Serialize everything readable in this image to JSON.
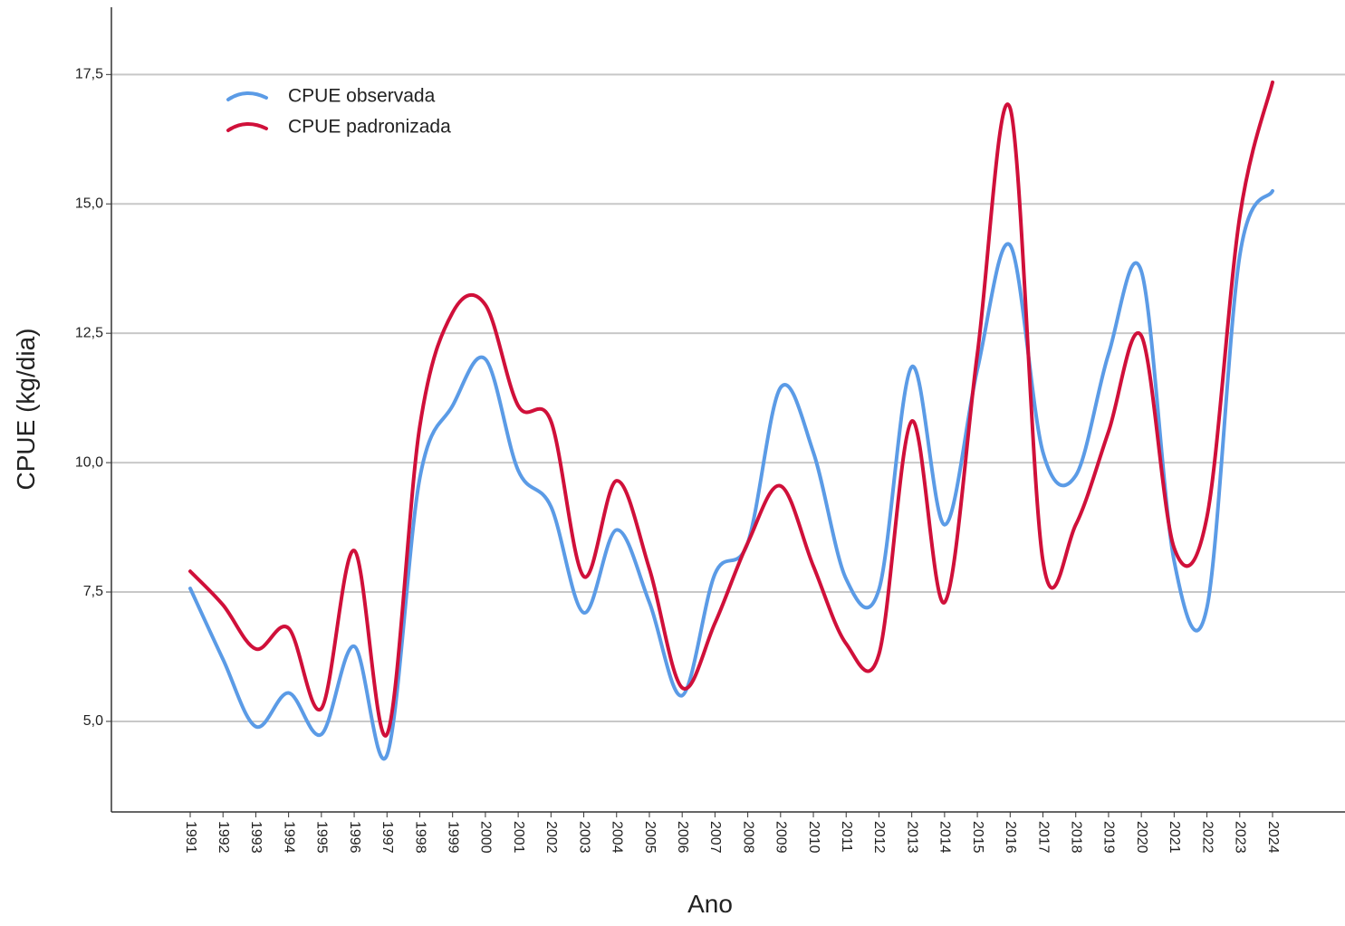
{
  "chart_data": {
    "type": "line",
    "x_label": "Ano",
    "y_label": "CPUE (kg/dia)",
    "categories": [
      "1991",
      "1992",
      "1993",
      "1994",
      "1995",
      "1996",
      "1997",
      "1998",
      "1999",
      "2000",
      "2001",
      "2002",
      "2003",
      "2004",
      "2005",
      "2006",
      "2007",
      "2008",
      "2009",
      "2010",
      "2011",
      "2012",
      "2013",
      "2014",
      "2015",
      "2016",
      "2017",
      "2018",
      "2019",
      "2020",
      "2021",
      "2022",
      "2023",
      "2024"
    ],
    "series": [
      {
        "name": "CPUE observada",
        "color": "#5b9be6",
        "values": [
          7.57,
          6.2,
          4.9,
          5.55,
          4.75,
          6.45,
          4.35,
          9.7,
          11.1,
          12.0,
          9.85,
          9.15,
          7.1,
          8.7,
          7.3,
          5.5,
          7.85,
          8.45,
          11.45,
          10.2,
          7.75,
          7.55,
          11.85,
          8.8,
          11.8,
          14.2,
          10.2,
          9.75,
          12.1,
          13.7,
          8.1,
          7.2,
          14.0,
          15.25
        ]
      },
      {
        "name": "CPUE padronizada",
        "color": "#d0103a",
        "values": [
          7.9,
          7.25,
          6.4,
          6.8,
          5.25,
          8.3,
          4.75,
          10.7,
          12.9,
          13.05,
          11.1,
          10.8,
          7.8,
          9.65,
          7.95,
          5.65,
          6.9,
          8.45,
          9.55,
          8.0,
          6.5,
          6.3,
          10.8,
          7.3,
          12.1,
          16.85,
          8.1,
          8.8,
          10.6,
          12.45,
          8.35,
          8.95,
          14.75,
          17.35
        ]
      }
    ],
    "ylim": [
      3.25,
      18.8
    ],
    "yticks": [
      {
        "value": 5,
        "label": "5,0"
      },
      {
        "value": 7.5,
        "label": "7,5"
      },
      {
        "value": 10,
        "label": "10,0"
      },
      {
        "value": 12.5,
        "label": "12,5"
      },
      {
        "value": 15,
        "label": "15,0"
      },
      {
        "value": 17.5,
        "label": "17,5"
      }
    ],
    "grid": true,
    "legend": "upper-left"
  }
}
